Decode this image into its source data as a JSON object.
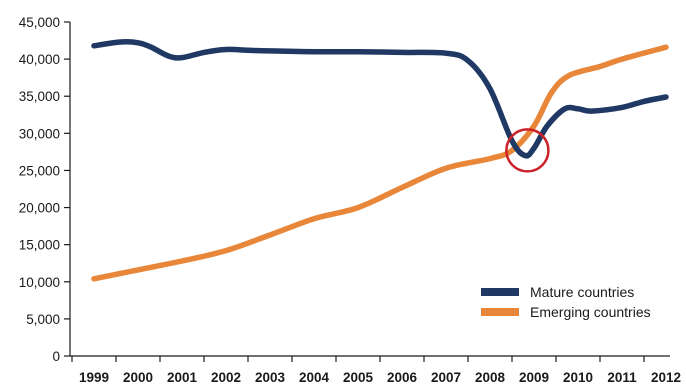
{
  "chart_data": {
    "type": "line",
    "x": [
      "1999",
      "2000",
      "2001",
      "2002",
      "2003",
      "2004",
      "2005",
      "2006",
      "2007",
      "2008",
      "2009",
      "2010",
      "2011",
      "2012"
    ],
    "ylim": [
      0,
      45000
    ],
    "yticks": [
      0,
      5000,
      10000,
      15000,
      20000,
      25000,
      30000,
      35000,
      40000,
      45000
    ],
    "ytick_labels": [
      "0",
      "5,000",
      "10,000",
      "15,000",
      "20,000",
      "25,000",
      "30,000",
      "35,000",
      "40,000",
      "45,000"
    ],
    "grid": false,
    "legend_position": "bottom-right",
    "series": [
      {
        "name": "Mature countries",
        "color": "#1f3864",
        "points": [
          [
            1999.0,
            41800
          ],
          [
            1999.6,
            42300
          ],
          [
            2000.0,
            42200
          ],
          [
            2000.3,
            41600
          ],
          [
            2000.7,
            40400
          ],
          [
            2001.0,
            40200
          ],
          [
            2001.5,
            40900
          ],
          [
            2002.0,
            41300
          ],
          [
            2002.5,
            41200
          ],
          [
            2003.0,
            41100
          ],
          [
            2004.0,
            41000
          ],
          [
            2005.0,
            41000
          ],
          [
            2006.0,
            40900
          ],
          [
            2007.0,
            40800
          ],
          [
            2007.5,
            39800
          ],
          [
            2008.0,
            36000
          ],
          [
            2008.5,
            29000
          ],
          [
            2008.8,
            27000
          ],
          [
            2009.0,
            28000
          ],
          [
            2009.3,
            31000
          ],
          [
            2009.7,
            33300
          ],
          [
            2010.0,
            33300
          ],
          [
            2010.3,
            33000
          ],
          [
            2011.0,
            33500
          ],
          [
            2011.5,
            34300
          ],
          [
            2012.0,
            34900
          ]
        ]
      },
      {
        "name": "Emerging countries",
        "color": "#e8873a",
        "points": [
          [
            1999.0,
            10400
          ],
          [
            2000.0,
            11600
          ],
          [
            2001.0,
            12800
          ],
          [
            2002.0,
            14200
          ],
          [
            2003.0,
            16300
          ],
          [
            2004.0,
            18500
          ],
          [
            2005.0,
            20000
          ],
          [
            2006.0,
            22700
          ],
          [
            2007.0,
            25300
          ],
          [
            2008.0,
            26600
          ],
          [
            2008.5,
            27700
          ],
          [
            2009.0,
            31000
          ],
          [
            2009.4,
            35500
          ],
          [
            2009.8,
            37800
          ],
          [
            2010.5,
            39000
          ],
          [
            2011.0,
            40000
          ],
          [
            2012.0,
            41600
          ]
        ]
      }
    ],
    "annotation": {
      "shape": "circle",
      "color": "#cc2229",
      "x": 2008.85,
      "y": 27700
    }
  }
}
